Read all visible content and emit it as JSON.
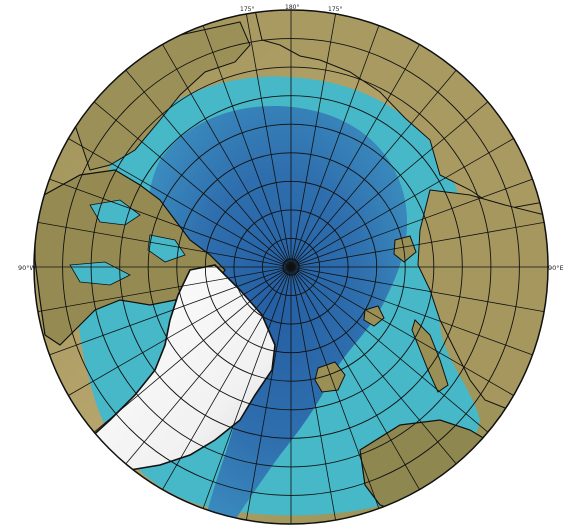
{
  "map": {
    "projection": "north polar stereographic",
    "center": "North Pole",
    "graticule": {
      "meridian_spacing_deg": 10,
      "parallel_spacing_deg": 5
    },
    "colors": {
      "land_low": "#8c8a4e",
      "land_high": "#b7a36a",
      "shelf_water": "#46b8c8",
      "deep_water": "#2f6fae",
      "greenland_ice": "#f2f2f2",
      "coastline": "#111111",
      "grid_lines": "#111111"
    },
    "edge_labels": {
      "top": [
        "175°",
        "180°",
        "175°"
      ],
      "left": "90°W",
      "right": "90°E"
    },
    "regions": [
      {
        "name": "greenland-ice-sheet",
        "type": "ice"
      },
      {
        "name": "canadian-arctic-archipelago",
        "type": "land"
      },
      {
        "name": "siberia",
        "type": "land"
      },
      {
        "name": "alaska",
        "type": "land"
      },
      {
        "name": "scandinavia",
        "type": "land"
      },
      {
        "name": "svalbard",
        "type": "land"
      },
      {
        "name": "novaya-zemlya",
        "type": "land"
      },
      {
        "name": "franz-josef-land",
        "type": "land"
      },
      {
        "name": "severnaya-zemlya",
        "type": "land"
      }
    ]
  }
}
